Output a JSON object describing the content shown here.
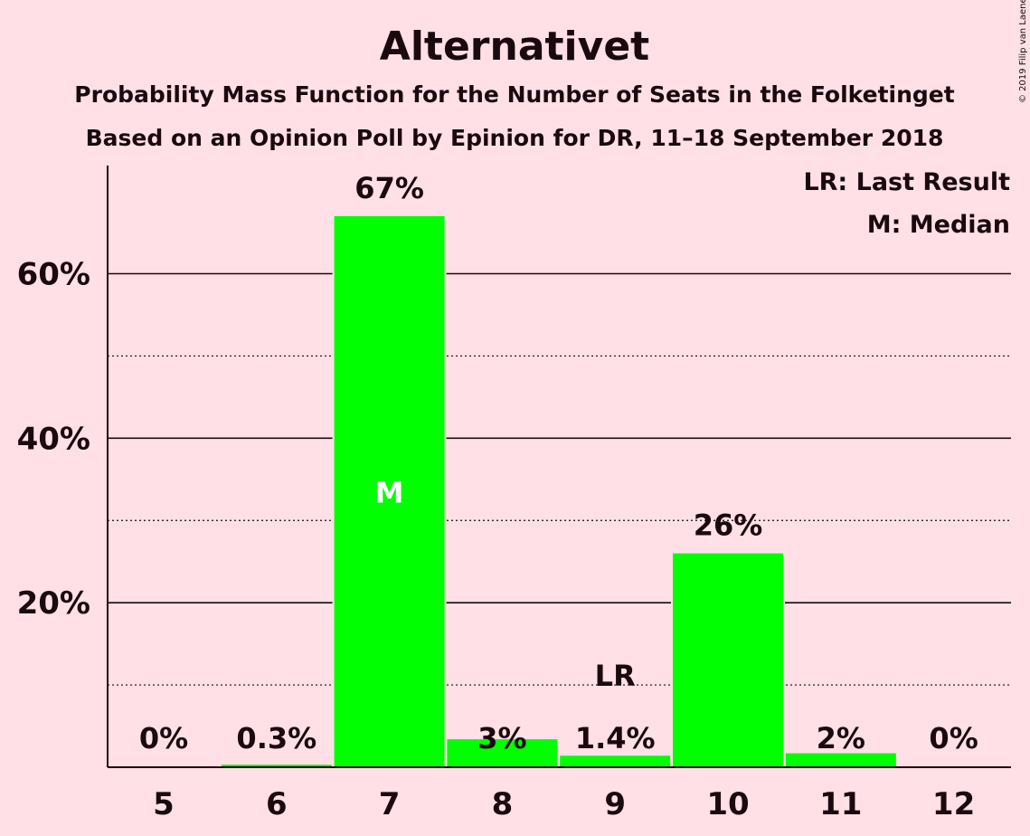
{
  "chart_data": {
    "type": "bar",
    "title": "Alternativet",
    "subtitle_1": "Probability Mass Function for the Number of Seats in the Folketinget",
    "subtitle_2": "Based on an Opinion Poll by Epinion for DR, 11–18 September 2018",
    "categories": [
      "5",
      "6",
      "7",
      "8",
      "9",
      "10",
      "11",
      "12"
    ],
    "values": [
      0,
      0.3,
      67,
      3.4,
      1.4,
      26,
      1.7,
      0
    ],
    "value_labels": [
      "0%",
      "0.3%",
      "67%",
      "3%",
      "1.4%",
      "26%",
      "2%",
      "0%"
    ],
    "ylim": [
      0,
      72
    ],
    "yticks": [
      20,
      40,
      60
    ],
    "ytick_labels": [
      "20%",
      "40%",
      "60%"
    ],
    "minor_gridlines": [
      10,
      30,
      50
    ],
    "grid": true,
    "bar_color": "#00ff00",
    "background": "#ffe0e6",
    "median_index": 2,
    "median_marker": "M",
    "last_result_index": 4,
    "last_result_marker": "LR",
    "legend": {
      "placement": "top-right",
      "items": [
        "LR: Last Result",
        "M: Median"
      ]
    },
    "copyright": "© 2019 Filip van Laenen"
  }
}
